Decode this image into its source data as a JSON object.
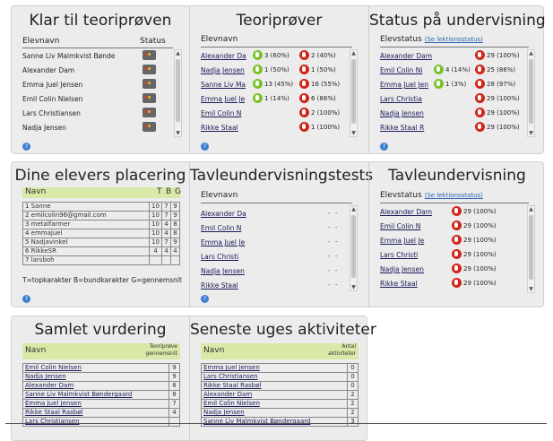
{
  "panels": {
    "klar": {
      "title": "Klar til teoriprøven",
      "col_name": "Elevnavn",
      "col_status": "Status",
      "rows": [
        "Sanne Liv Malmkvist Bønde",
        "Alexander Dam",
        "Emma Juel Jensen",
        "Emil Colin Nielsen",
        "Lars Christiansen",
        "Nadja Jensen"
      ]
    },
    "teoriprover": {
      "title": "Teoriprøver",
      "col_name": "Elevnavn",
      "rows": [
        {
          "name": "Alexander Da",
          "good": "3 (60%)",
          "bad": "2 (40%)"
        },
        {
          "name": "Nadja Jensen",
          "good": "1 (50%)",
          "bad": "1 (50%)"
        },
        {
          "name": "Sanne Liv Ma",
          "good": "13 (45%)",
          "bad": "16 (55%)"
        },
        {
          "name": "Emma Juel Je",
          "good": "1 (14%)",
          "bad": "6 (86%)"
        },
        {
          "name": "Emil Colin N",
          "good": "",
          "bad": "2 (100%)"
        },
        {
          "name": "Rikke Staal",
          "good": "",
          "bad": "1 (100%)"
        }
      ]
    },
    "status": {
      "title": "Status på undervisning",
      "col_name": "Elevstatus",
      "link": "(Se lektionsstatus)",
      "rows": [
        {
          "name": "Alexander Dam",
          "good": "",
          "bad": "29 (100%)"
        },
        {
          "name": "Emil Colin Ni",
          "good": "4 (14%)",
          "bad": "25 (86%)"
        },
        {
          "name": "Emma Juel Jen",
          "good": "1 (3%)",
          "bad": "28 (97%)"
        },
        {
          "name": "Lars Christia",
          "good": "",
          "bad": "29 (100%)"
        },
        {
          "name": "Nadja Jensen",
          "good": "",
          "bad": "29 (100%)"
        },
        {
          "name": "Rikke Staal R",
          "good": "",
          "bad": "29 (100%)"
        }
      ]
    },
    "placering": {
      "title": "Dine elevers placering",
      "col_name": "Navn",
      "col_t": "T",
      "col_b": "B",
      "col_g": "G",
      "rows": [
        {
          "name": "1 Sanne",
          "t": "10",
          "b": "7",
          "g": "9"
        },
        {
          "name": "2 emilcolin96@gmail.com",
          "t": "10",
          "b": "7",
          "g": "9"
        },
        {
          "name": "3 metalfarmer",
          "t": "10",
          "b": "4",
          "g": "8"
        },
        {
          "name": "4 emmajuel",
          "t": "10",
          "b": "4",
          "g": "8"
        },
        {
          "name": "5 Nadjavinkel",
          "t": "10",
          "b": "7",
          "g": "9"
        },
        {
          "name": "6 RikkeSR",
          "t": "4",
          "b": "4",
          "g": "4"
        },
        {
          "name": "7 larsboh",
          "t": "",
          "b": "",
          "g": ""
        }
      ],
      "legend": "T=topkarakter B=bundkarakter G=gennemsnit"
    },
    "tavletests": {
      "title": "Tavleundervisningstests",
      "col_name": "Elevnavn",
      "rows": [
        {
          "name": "Alexander Da",
          "a": "-",
          "b": "-"
        },
        {
          "name": "Emil Colin N",
          "a": "-",
          "b": "-"
        },
        {
          "name": "Emma Juel Je",
          "a": "-",
          "b": "-"
        },
        {
          "name": "Lars Christi",
          "a": "-",
          "b": "-"
        },
        {
          "name": "Nadja Jensen",
          "a": "-",
          "b": "-"
        },
        {
          "name": "Rikke Staal",
          "a": "-",
          "b": "-"
        }
      ]
    },
    "tavle": {
      "title": "Tavleundervisning",
      "col_name": "Elevstatus",
      "link": "(Se lektionsstatus)",
      "rows": [
        {
          "name": "Alexander Dam",
          "bad": "29 (100%)"
        },
        {
          "name": "Emil Colin N",
          "bad": "29 (100%)"
        },
        {
          "name": "Emma Juel Je",
          "bad": "29 (100%)"
        },
        {
          "name": "Lars Christi",
          "bad": "29 (100%)"
        },
        {
          "name": "Nadja Jensen",
          "bad": "29 (100%)"
        },
        {
          "name": "Rikke Staal",
          "bad": "29 (100%)"
        }
      ]
    },
    "samlet": {
      "title": "Samlet vurdering",
      "col_name": "Navn",
      "col_score": "Teoriprøve gennemsnit",
      "rows": [
        {
          "name": "Emil Colin Nielsen",
          "v": "9"
        },
        {
          "name": "Nadja Jensen",
          "v": "9"
        },
        {
          "name": "Alexander Dam",
          "v": "8"
        },
        {
          "name": "Sanne Liv Malmkvist Bøndergaard",
          "v": "8"
        },
        {
          "name": "Emma Juel Jensen",
          "v": "7"
        },
        {
          "name": "Rikke Staal Rasbøl",
          "v": "4"
        },
        {
          "name": "Lars Christiansen",
          "v": ""
        }
      ]
    },
    "seneste": {
      "title": "Seneste uges aktiviteter",
      "col_name": "Navn",
      "col_count": "Antal aktiviteter",
      "rows": [
        {
          "name": "Emma Juel Jensen",
          "v": "0"
        },
        {
          "name": "Lars Christiansen",
          "v": "0"
        },
        {
          "name": "Rikke Staal Rasbøl",
          "v": "0"
        },
        {
          "name": "Alexander Dam",
          "v": "2"
        },
        {
          "name": "Emil Colin Nielsen",
          "v": "2"
        },
        {
          "name": "Nadja Jensen",
          "v": "2"
        },
        {
          "name": "Sanne Liv Malmkvist Bøndergaard",
          "v": "3"
        }
      ]
    }
  },
  "icons": {
    "good": "thumb-up-icon",
    "bad": "thumb-down-icon",
    "status": "traffic-light-icon",
    "help": "help-icon"
  },
  "colors": {
    "good": "#7ac22c",
    "bad": "#d2251a",
    "header_bar": "#d9e9a7",
    "link": "#2a64b2"
  },
  "help_label": "?",
  "scroll": {
    "up": "▲",
    "down": "▼"
  }
}
